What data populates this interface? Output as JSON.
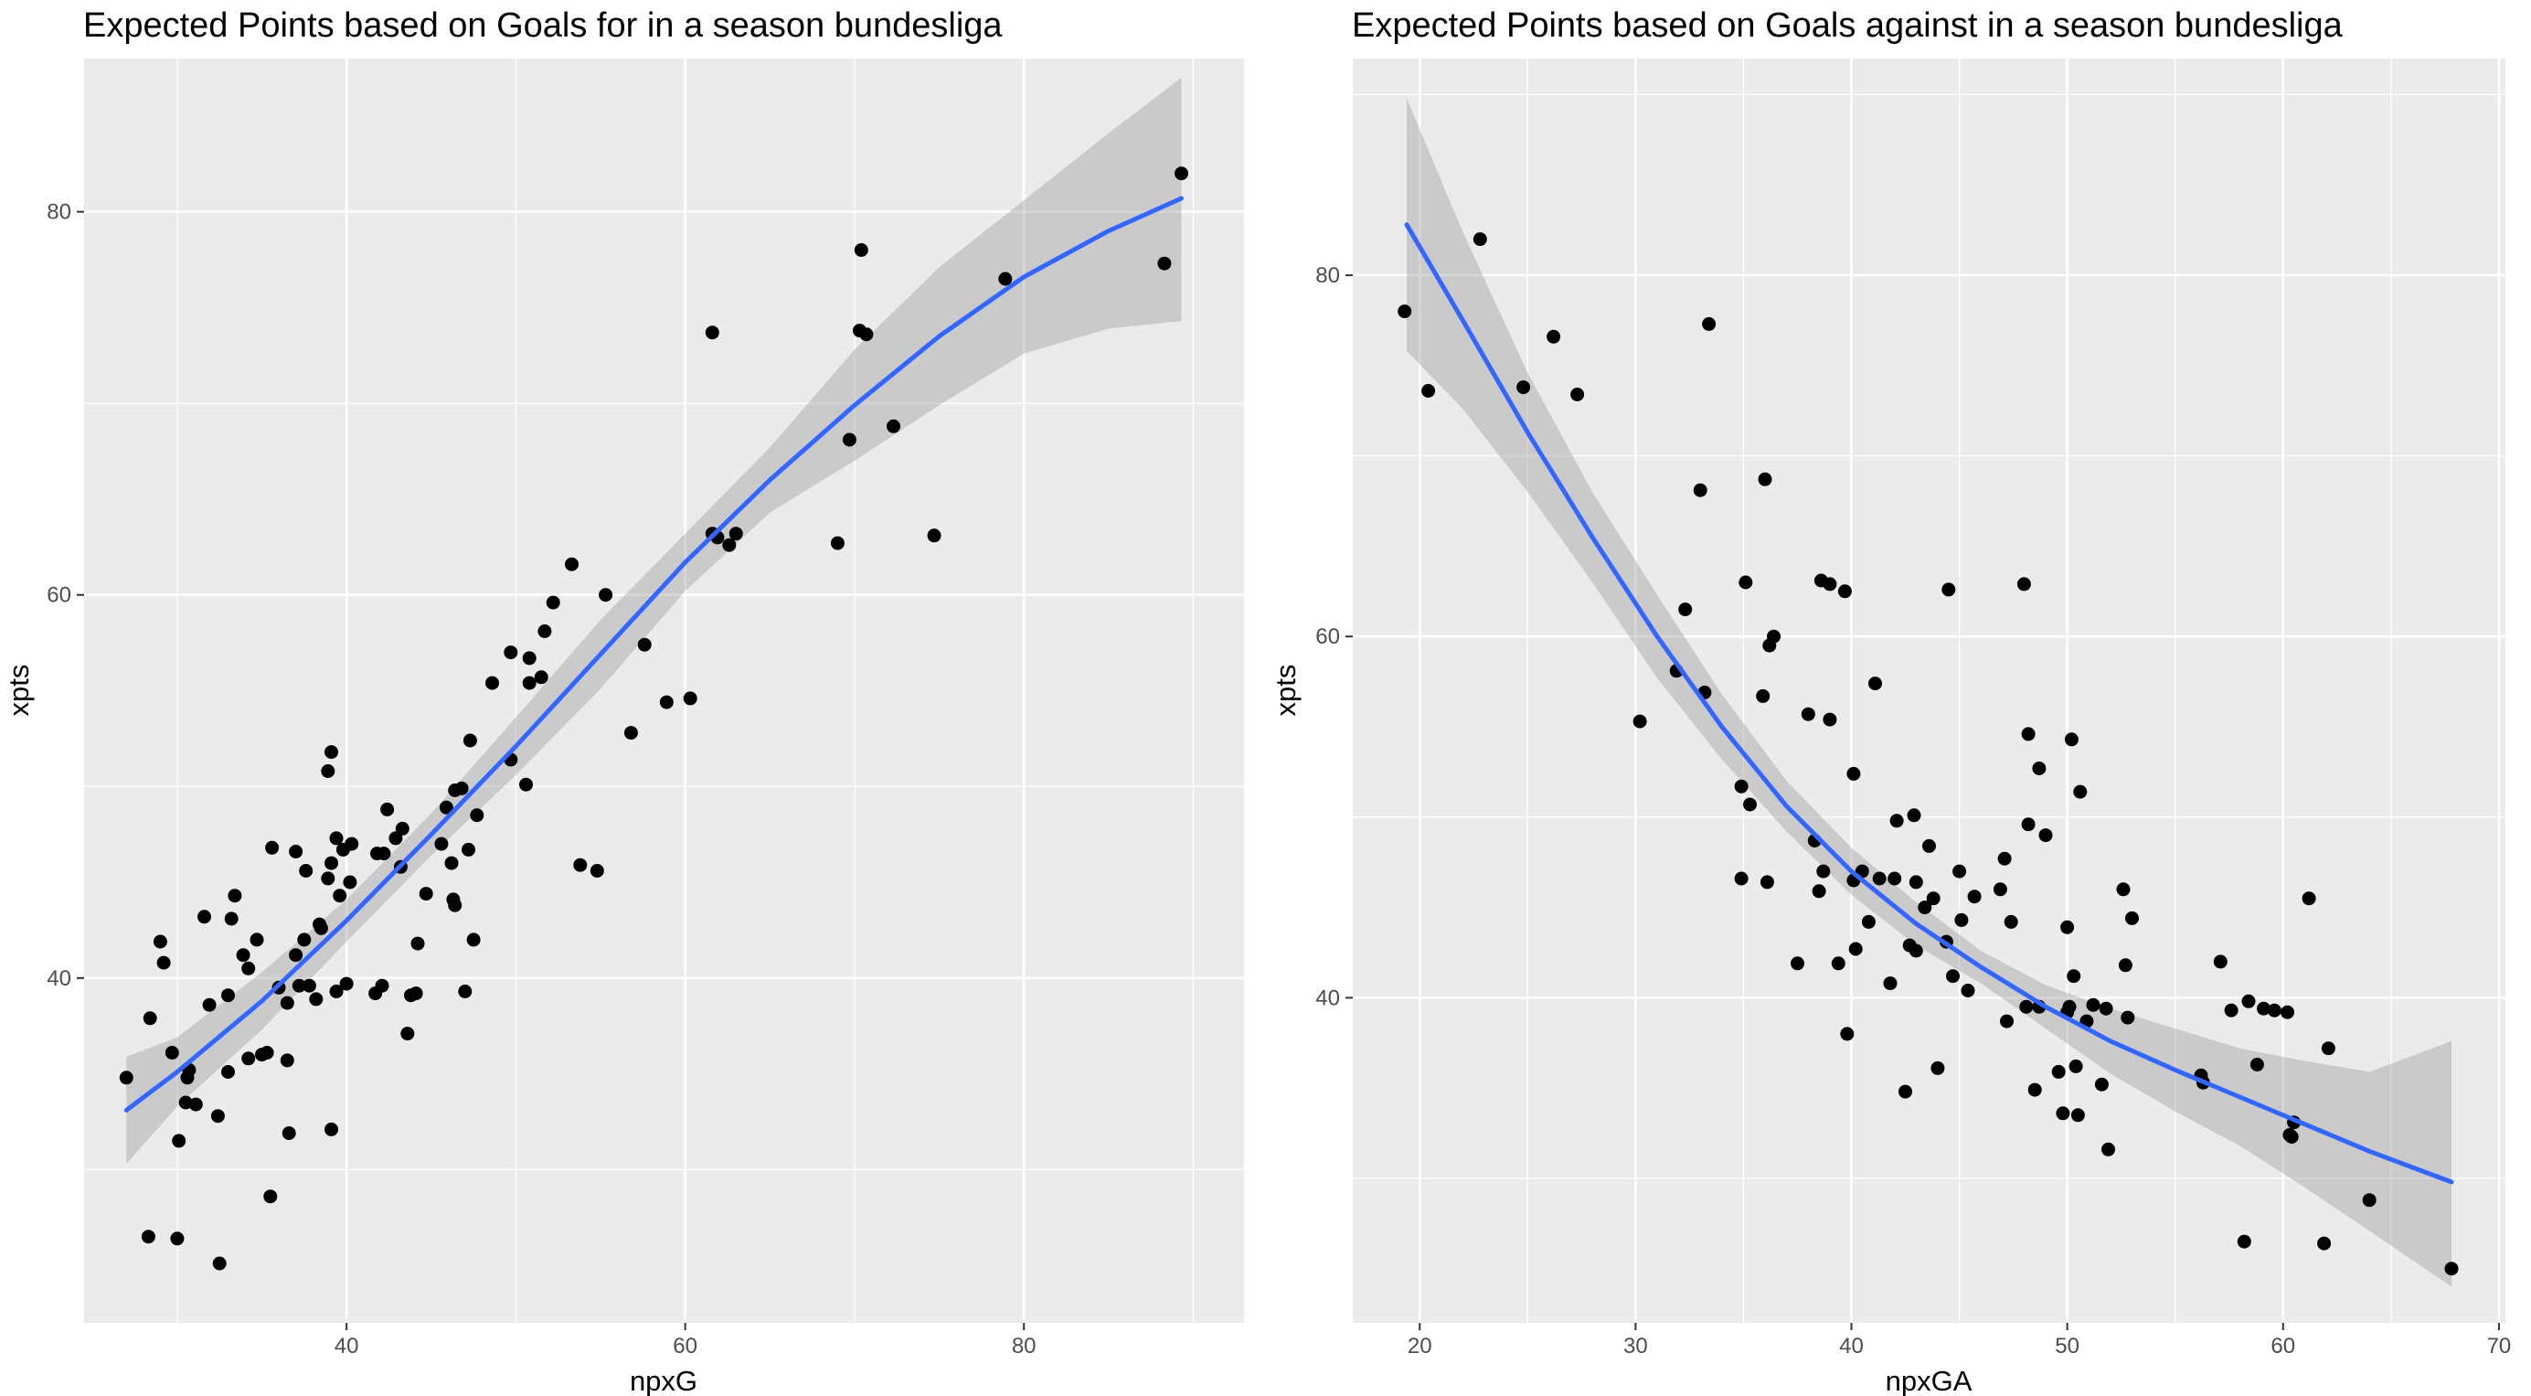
{
  "chart_data": [
    {
      "type": "scatter",
      "title": "Expected Points based on Goals for in a season bundesliga",
      "xlabel": "npxG",
      "ylabel": "xpts",
      "xlim": [
        24.5,
        93
      ],
      "ylim": [
        22,
        88
      ],
      "xticks": [
        40,
        60,
        80
      ],
      "yticks": [
        40,
        60,
        80
      ],
      "grid": true,
      "smooth": {
        "method": "loess",
        "color": "#3366ff",
        "band_color": "#999999",
        "x": [
          27,
          30,
          35,
          40,
          45,
          50,
          55,
          60,
          65,
          70,
          75,
          80,
          85,
          89.3
        ],
        "y": [
          33.1,
          35.1,
          38.8,
          43.0,
          47.5,
          52.1,
          56.9,
          61.7,
          66.0,
          69.9,
          73.5,
          76.6,
          79.0,
          80.7
        ],
        "lower": [
          30.3,
          33.3,
          37.3,
          41.9,
          46.4,
          50.6,
          55.1,
          60.2,
          64.3,
          67.0,
          69.9,
          72.6,
          73.9,
          74.3
        ],
        "upper": [
          35.9,
          36.9,
          40.3,
          44.1,
          48.6,
          53.6,
          58.7,
          63.2,
          67.7,
          72.8,
          77.1,
          80.6,
          84.1,
          87.0
        ]
      },
      "points": [
        [
          27.0,
          34.8
        ],
        [
          28.3,
          26.5
        ],
        [
          28.4,
          37.9
        ],
        [
          29.0,
          41.9
        ],
        [
          29.2,
          40.8
        ],
        [
          29.7,
          36.1
        ],
        [
          30.0,
          26.4
        ],
        [
          30.1,
          31.5
        ],
        [
          30.5,
          33.5
        ],
        [
          30.6,
          34.8
        ],
        [
          30.7,
          35.2
        ],
        [
          31.1,
          33.4
        ],
        [
          31.6,
          43.2
        ],
        [
          31.9,
          38.6
        ],
        [
          32.4,
          32.8
        ],
        [
          32.5,
          25.1
        ],
        [
          33.0,
          39.1
        ],
        [
          33.0,
          35.1
        ],
        [
          33.2,
          43.1
        ],
        [
          33.4,
          44.3
        ],
        [
          33.9,
          41.2
        ],
        [
          34.2,
          40.5
        ],
        [
          34.2,
          35.8
        ],
        [
          34.7,
          42.0
        ],
        [
          35.0,
          36.0
        ],
        [
          35.3,
          36.1
        ],
        [
          35.5,
          28.6
        ],
        [
          35.6,
          46.8
        ],
        [
          36.0,
          39.5
        ],
        [
          36.5,
          38.7
        ],
        [
          36.5,
          35.7
        ],
        [
          36.6,
          31.9
        ],
        [
          37.0,
          41.2
        ],
        [
          37.0,
          46.6
        ],
        [
          37.2,
          39.6
        ],
        [
          37.5,
          42.0
        ],
        [
          37.6,
          45.6
        ],
        [
          37.8,
          39.6
        ],
        [
          38.2,
          38.9
        ],
        [
          38.4,
          42.8
        ],
        [
          38.5,
          42.6
        ],
        [
          38.9,
          45.2
        ],
        [
          38.9,
          50.8
        ],
        [
          39.1,
          46.0
        ],
        [
          39.1,
          51.8
        ],
        [
          39.1,
          32.1
        ],
        [
          39.4,
          47.3
        ],
        [
          39.4,
          39.3
        ],
        [
          39.6,
          44.3
        ],
        [
          39.8,
          46.7
        ],
        [
          40.0,
          39.7
        ],
        [
          40.2,
          45.0
        ],
        [
          40.3,
          47.0
        ],
        [
          41.7,
          39.2
        ],
        [
          41.8,
          46.5
        ],
        [
          42.1,
          39.6
        ],
        [
          42.2,
          46.5
        ],
        [
          42.4,
          48.8
        ],
        [
          42.9,
          47.3
        ],
        [
          43.2,
          45.8
        ],
        [
          43.3,
          47.8
        ],
        [
          43.6,
          37.1
        ],
        [
          43.8,
          39.1
        ],
        [
          44.1,
          39.2
        ],
        [
          44.2,
          41.8
        ],
        [
          44.7,
          44.4
        ],
        [
          45.6,
          47.0
        ],
        [
          45.9,
          48.9
        ],
        [
          46.2,
          46.0
        ],
        [
          46.3,
          44.1
        ],
        [
          46.4,
          43.8
        ],
        [
          46.4,
          49.8
        ],
        [
          46.8,
          49.9
        ],
        [
          47.0,
          39.3
        ],
        [
          47.2,
          46.7
        ],
        [
          47.3,
          52.4
        ],
        [
          47.5,
          42.0
        ],
        [
          47.7,
          48.5
        ],
        [
          48.6,
          55.4
        ],
        [
          49.7,
          57.0
        ],
        [
          49.7,
          51.4
        ],
        [
          50.6,
          50.1
        ],
        [
          50.8,
          56.7
        ],
        [
          50.8,
          55.4
        ],
        [
          51.5,
          55.7
        ],
        [
          51.7,
          58.1
        ],
        [
          52.2,
          59.6
        ],
        [
          53.3,
          61.6
        ],
        [
          53.8,
          45.9
        ],
        [
          54.8,
          45.6
        ],
        [
          55.3,
          60.0
        ],
        [
          56.8,
          52.8
        ],
        [
          57.6,
          57.4
        ],
        [
          58.9,
          54.4
        ],
        [
          60.3,
          54.6
        ],
        [
          61.6,
          73.7
        ],
        [
          61.6,
          63.2
        ],
        [
          61.9,
          63.0
        ],
        [
          62.6,
          62.6
        ],
        [
          63.0,
          63.2
        ],
        [
          69.0,
          62.7
        ],
        [
          69.7,
          68.1
        ],
        [
          70.3,
          73.8
        ],
        [
          70.4,
          78.0
        ],
        [
          70.7,
          73.6
        ],
        [
          72.3,
          68.8
        ],
        [
          74.7,
          63.1
        ],
        [
          78.9,
          76.5
        ],
        [
          88.3,
          77.3
        ],
        [
          89.3,
          82.0
        ]
      ]
    },
    {
      "type": "scatter",
      "title": "Expected Points based on Goals against in a season bundesliga",
      "xlabel": "npxGA",
      "ylabel": "xpts",
      "xlim": [
        16.9,
        70.3
      ],
      "ylim": [
        22,
        92
      ],
      "xticks": [
        20,
        30,
        40,
        50,
        60,
        70
      ],
      "yticks": [
        40,
        60,
        80
      ],
      "grid": true,
      "smooth": {
        "method": "loess",
        "color": "#3366ff",
        "band_color": "#999999",
        "x": [
          19.4,
          22,
          25,
          28,
          31,
          34,
          37,
          40,
          43,
          46,
          49,
          52,
          55,
          58,
          61,
          64,
          67.8
        ],
        "y": [
          82.8,
          77.5,
          71.3,
          65.5,
          60.0,
          55.0,
          50.6,
          47.0,
          44.1,
          41.7,
          39.5,
          37.6,
          36.0,
          34.5,
          33.0,
          31.5,
          29.8
        ],
        "lower": [
          75.8,
          72.6,
          68.0,
          63.0,
          57.7,
          53.2,
          49.2,
          45.7,
          42.9,
          40.8,
          38.3,
          35.8,
          33.7,
          31.8,
          29.5,
          27.1,
          24.0
        ],
        "upper": [
          89.8,
          82.4,
          74.6,
          68.0,
          62.3,
          56.8,
          52.0,
          48.3,
          45.3,
          42.6,
          40.7,
          39.4,
          38.3,
          37.2,
          36.5,
          35.9,
          37.6
        ]
      },
      "points": [
        [
          19.3,
          78.0
        ],
        [
          20.4,
          73.6
        ],
        [
          22.8,
          82.0
        ],
        [
          24.8,
          73.8
        ],
        [
          26.2,
          76.6
        ],
        [
          27.3,
          73.4
        ],
        [
          30.2,
          55.3
        ],
        [
          31.9,
          58.1
        ],
        [
          32.3,
          61.5
        ],
        [
          33.0,
          68.1
        ],
        [
          33.2,
          56.9
        ],
        [
          33.4,
          77.3
        ],
        [
          34.9,
          46.6
        ],
        [
          34.9,
          51.7
        ],
        [
          35.1,
          63.0
        ],
        [
          35.3,
          50.7
        ],
        [
          35.9,
          56.7
        ],
        [
          36.0,
          68.7
        ],
        [
          36.1,
          46.4
        ],
        [
          36.2,
          59.5
        ],
        [
          36.4,
          60.0
        ],
        [
          37.5,
          41.9
        ],
        [
          38.0,
          55.7
        ],
        [
          38.3,
          48.7
        ],
        [
          38.5,
          45.9
        ],
        [
          38.6,
          63.1
        ],
        [
          38.7,
          47.0
        ],
        [
          39.0,
          55.4
        ],
        [
          39.0,
          62.9
        ],
        [
          39.4,
          41.9
        ],
        [
          39.7,
          62.5
        ],
        [
          39.8,
          38.0
        ],
        [
          40.1,
          52.4
        ],
        [
          40.1,
          46.5
        ],
        [
          40.2,
          42.7
        ],
        [
          40.5,
          47.0
        ],
        [
          40.8,
          44.2
        ],
        [
          41.1,
          57.4
        ],
        [
          41.3,
          46.6
        ],
        [
          41.8,
          40.8
        ],
        [
          42.0,
          46.6
        ],
        [
          42.1,
          49.8
        ],
        [
          42.5,
          34.8
        ],
        [
          42.7,
          42.9
        ],
        [
          42.9,
          50.1
        ],
        [
          43.0,
          42.6
        ],
        [
          43.0,
          46.4
        ],
        [
          43.4,
          45.0
        ],
        [
          43.6,
          48.4
        ],
        [
          43.8,
          45.5
        ],
        [
          44.0,
          36.1
        ],
        [
          44.4,
          43.1
        ],
        [
          44.5,
          62.6
        ],
        [
          44.7,
          41.2
        ],
        [
          45.0,
          47.0
        ],
        [
          45.1,
          44.3
        ],
        [
          45.4,
          40.4
        ],
        [
          45.7,
          45.6
        ],
        [
          46.9,
          46.0
        ],
        [
          47.1,
          47.7
        ],
        [
          47.2,
          38.7
        ],
        [
          47.4,
          44.2
        ],
        [
          48.0,
          62.9
        ],
        [
          48.1,
          39.5
        ],
        [
          48.2,
          54.6
        ],
        [
          48.2,
          49.6
        ],
        [
          48.5,
          34.9
        ],
        [
          48.7,
          52.7
        ],
        [
          48.7,
          39.5
        ],
        [
          49.0,
          49.0
        ],
        [
          49.6,
          35.9
        ],
        [
          49.8,
          33.6
        ],
        [
          50.0,
          39.2
        ],
        [
          50.0,
          43.9
        ],
        [
          50.1,
          39.5
        ],
        [
          50.2,
          54.3
        ],
        [
          50.3,
          41.2
        ],
        [
          50.4,
          36.2
        ],
        [
          50.5,
          33.5
        ],
        [
          50.6,
          51.4
        ],
        [
          50.9,
          38.7
        ],
        [
          51.2,
          39.6
        ],
        [
          51.6,
          35.2
        ],
        [
          51.8,
          39.4
        ],
        [
          51.9,
          31.6
        ],
        [
          52.6,
          46.0
        ],
        [
          52.7,
          41.8
        ],
        [
          52.8,
          38.9
        ],
        [
          53.0,
          44.4
        ],
        [
          56.2,
          35.7
        ],
        [
          56.3,
          35.3
        ],
        [
          57.1,
          42.0
        ],
        [
          57.6,
          39.3
        ],
        [
          58.2,
          26.5
        ],
        [
          58.4,
          39.8
        ],
        [
          58.8,
          36.3
        ],
        [
          59.1,
          39.4
        ],
        [
          59.6,
          39.3
        ],
        [
          60.2,
          39.2
        ],
        [
          60.3,
          32.4
        ],
        [
          60.4,
          32.3
        ],
        [
          60.5,
          33.1
        ],
        [
          61.2,
          45.5
        ],
        [
          61.9,
          26.4
        ],
        [
          62.1,
          37.2
        ],
        [
          64.0,
          28.8
        ],
        [
          67.8,
          25.0
        ]
      ]
    }
  ]
}
